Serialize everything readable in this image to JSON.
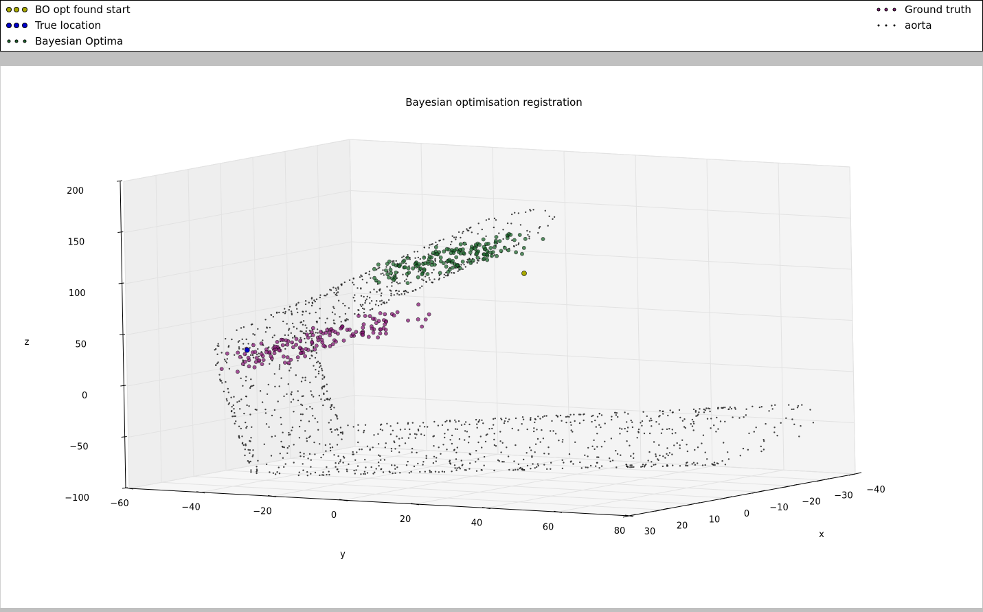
{
  "legend": {
    "bo_start": "BO opt found start",
    "true_location": "True location",
    "bayesian_optima": "Bayesian Optima",
    "ground_truth": "Ground truth",
    "aorta": "aorta"
  },
  "colors": {
    "bo_start": "#a9a900",
    "true_location": "#0000cc",
    "bayesian_optima": "#1e6a2e",
    "ground_truth": "#8b1a7a",
    "aorta": "#111111",
    "pane_left": "#eeeeee",
    "pane_back": "#f4f4f4",
    "pane_floor": "#f6f6f6",
    "grid": "#e2e2e2"
  },
  "chart_data": {
    "type": "scatter",
    "title": "Bayesian optimisation registration",
    "xlabel": "x",
    "ylabel": "y",
    "zlabel": "z",
    "xlim": [
      -40,
      30
    ],
    "ylim": [
      -60,
      80
    ],
    "zlim": [
      -100,
      200
    ],
    "x_ticks": [
      "−40",
      "−30",
      "−20",
      "−10",
      "0",
      "10",
      "20",
      "30"
    ],
    "y_ticks": [
      "−60",
      "−40",
      "−20",
      "0",
      "20",
      "40",
      "60",
      "80"
    ],
    "z_ticks": [
      "200",
      "150",
      "100",
      "50",
      "0",
      "−50",
      "−100"
    ],
    "grid": true,
    "legend_position": "top",
    "series": [
      {
        "name": "BO opt found start",
        "points": [
          [
            -5,
            20,
            105
          ]
        ]
      },
      {
        "name": "True location",
        "points": [
          [
            -5,
            -58,
            15
          ]
        ]
      },
      {
        "name": "Bayesian Optima",
        "shape": "band",
        "from": [
          -2,
          -14,
          100
        ],
        "to": [
          -2,
          18,
          135
        ],
        "count": 160
      },
      {
        "name": "Ground truth",
        "shape": "band",
        "from": [
          -2,
          -55,
          8
        ],
        "to": [
          -2,
          -10,
          60
        ],
        "count": 150
      },
      {
        "name": "aorta",
        "shape": "arch",
        "count": 1400
      }
    ]
  }
}
